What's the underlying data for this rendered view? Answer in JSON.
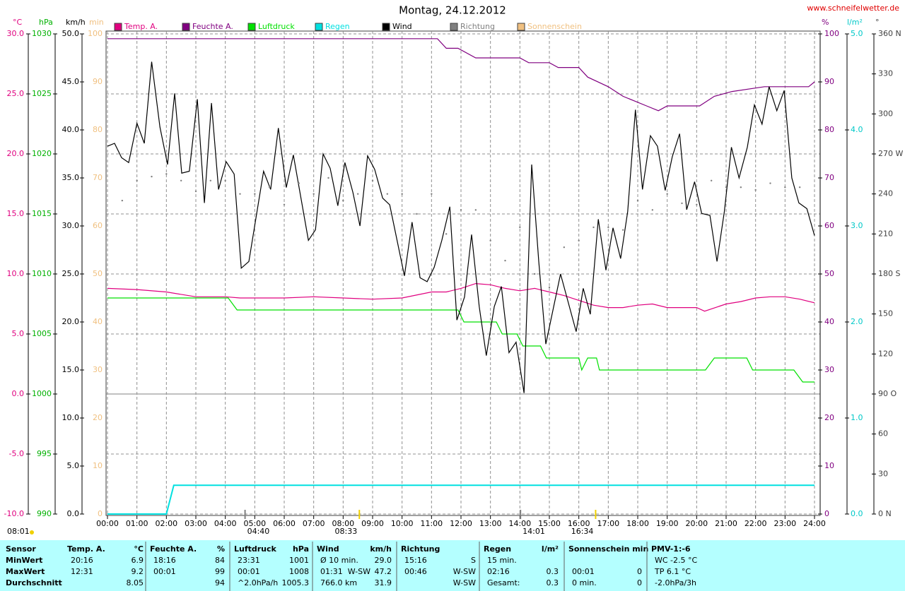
{
  "chart_data": {
    "type": "line",
    "title": "Montag, 24.12.2012",
    "source": "www.schneifelwetter.de",
    "corner_note": "08:01",
    "xlim": [
      0,
      24
    ],
    "xticks": [
      {
        "value": 0,
        "label": "00:00"
      },
      {
        "value": 1,
        "label": "01:00"
      },
      {
        "value": 2,
        "label": "02:00"
      },
      {
        "value": 3,
        "label": "03:00"
      },
      {
        "value": 4,
        "label": "04:00"
      },
      {
        "value": 5,
        "label": "05:00"
      },
      {
        "value": 6,
        "label": "06:00"
      },
      {
        "value": 7,
        "label": "07:00"
      },
      {
        "value": 8,
        "label": "08:00"
      },
      {
        "value": 9,
        "label": "09:00"
      },
      {
        "value": 10,
        "label": "10:00"
      },
      {
        "value": 11,
        "label": "11:00"
      },
      {
        "value": 12,
        "label": "12:00"
      },
      {
        "value": 13,
        "label": "13:00"
      },
      {
        "value": 14,
        "label": "14:00"
      },
      {
        "value": 15,
        "label": "15:00"
      },
      {
        "value": 16,
        "label": "16:00"
      },
      {
        "value": 17,
        "label": "17:00"
      },
      {
        "value": 18,
        "label": "18:00"
      },
      {
        "value": 19,
        "label": "19:00"
      },
      {
        "value": 20,
        "label": "20:00"
      },
      {
        "value": 21,
        "label": "21:00"
      },
      {
        "value": 22,
        "label": "22:00"
      },
      {
        "value": 23,
        "label": "23:00"
      },
      {
        "value": 24,
        "label": "24:00"
      }
    ],
    "grid": true,
    "axes": [
      {
        "unit": "°C",
        "color": "#e0007f",
        "lim": [
          -10,
          30
        ],
        "ticks": [
          {
            "value": -10,
            "label": "-10.0"
          },
          {
            "value": -5,
            "label": "-5.0"
          },
          {
            "value": 0,
            "label": "0.0"
          },
          {
            "value": 5,
            "label": "5.0"
          },
          {
            "value": 10,
            "label": "10.0"
          },
          {
            "value": 15,
            "label": "15.0"
          },
          {
            "value": 20,
            "label": "20.0"
          },
          {
            "value": 25,
            "label": "25.0"
          },
          {
            "value": 30,
            "label": "30.0"
          }
        ]
      },
      {
        "unit": "hPa",
        "color": "#00b000",
        "lim": [
          990,
          1030
        ],
        "ticks": [
          990,
          995,
          1000,
          1005,
          1010,
          1015,
          1020,
          1025,
          1030
        ]
      },
      {
        "unit": "km/h",
        "color": "#000000",
        "lim": [
          0,
          50
        ],
        "ticks": [
          {
            "value": 0,
            "label": "0.0"
          },
          {
            "value": 5,
            "label": "5.0"
          },
          {
            "value": 10,
            "label": "10.0"
          },
          {
            "value": 15,
            "label": "15.0"
          },
          {
            "value": 20,
            "label": "20.0"
          },
          {
            "value": 25,
            "label": "25.0"
          },
          {
            "value": 30,
            "label": "30.0"
          },
          {
            "value": 35,
            "label": "35.0"
          },
          {
            "value": 40,
            "label": "40.0"
          },
          {
            "value": 45,
            "label": "45.0"
          },
          {
            "value": 50,
            "label": "50.0"
          }
        ]
      },
      {
        "unit": "min",
        "color": "#f0c080",
        "lim": [
          0,
          100
        ],
        "ticks": [
          0,
          10,
          20,
          30,
          40,
          50,
          60,
          70,
          80,
          90,
          100
        ]
      },
      {
        "unit": "%",
        "color": "#800080",
        "lim": [
          0,
          100
        ],
        "ticks": [
          0,
          10,
          20,
          30,
          40,
          50,
          60,
          70,
          80,
          90,
          100
        ]
      },
      {
        "unit": "l/m²",
        "color": "#00c8c8",
        "lim": [
          0,
          5
        ],
        "ticks": [
          {
            "value": 0,
            "label": "0.0"
          },
          {
            "value": 1,
            "label": "1.0"
          },
          {
            "value": 2,
            "label": "2.0"
          },
          {
            "value": 3,
            "label": "3.0"
          },
          {
            "value": 4,
            "label": "4.0"
          },
          {
            "value": 5,
            "label": "5.0"
          }
        ]
      },
      {
        "unit": "°",
        "color": "#404040",
        "lim": [
          0,
          360
        ],
        "ticks": [
          {
            "value": 0,
            "label": "0 N"
          },
          30,
          60,
          {
            "value": 90,
            "label": "90 O"
          },
          120,
          150,
          {
            "value": 180,
            "label": "180 S"
          },
          210,
          240,
          {
            "value": 270,
            "label": "270 W"
          },
          300,
          330,
          {
            "value": 360,
            "label": "360 N"
          }
        ]
      }
    ],
    "series": [
      {
        "name": "Temp. A.",
        "color": "#e0007f",
        "axis": "°C",
        "x": [
          0,
          1,
          2,
          3,
          4,
          4.5,
          5,
          6,
          7,
          8,
          9,
          10,
          11,
          11.5,
          12,
          12.5,
          13,
          13.5,
          14,
          14.5,
          15,
          15.5,
          16,
          16.5,
          17,
          17.5,
          18,
          18.5,
          19,
          19.5,
          20,
          20.27,
          21,
          21.5,
          22,
          22.5,
          23,
          23.5,
          24
        ],
        "values": [
          8.8,
          8.7,
          8.5,
          8.1,
          8.1,
          8.0,
          8.0,
          8.0,
          8.1,
          8.0,
          7.9,
          8.0,
          8.5,
          8.5,
          8.8,
          9.2,
          9.1,
          8.8,
          8.6,
          8.8,
          8.5,
          8.2,
          7.8,
          7.4,
          7.2,
          7.2,
          7.4,
          7.5,
          7.2,
          7.2,
          7.2,
          6.9,
          7.5,
          7.7,
          8.0,
          8.1,
          8.1,
          7.9,
          7.6
        ]
      },
      {
        "name": "Feuchte A.",
        "color": "#800080",
        "axis": "%",
        "x": [
          0,
          11.2,
          11.5,
          11.9,
          12.5,
          14.0,
          14.3,
          15.0,
          15.3,
          16.0,
          16.3,
          17.0,
          17.5,
          18.3,
          18.7,
          19.0,
          20.1,
          20.6,
          21.2,
          22.3,
          23.8,
          24
        ],
        "values": [
          99,
          99,
          97,
          97,
          95,
          95,
          94,
          94,
          93,
          93,
          91,
          89,
          87,
          85,
          84,
          85,
          85,
          87,
          88,
          89,
          89,
          90
        ]
      },
      {
        "name": "Luftdruck",
        "color": "#00e000",
        "axis": "hPa",
        "x": [
          0,
          4.1,
          4.4,
          11.9,
          12.1,
          13.2,
          13.4,
          13.9,
          14.1,
          14.7,
          14.9,
          16.0,
          16.1,
          16.3,
          16.6,
          16.7,
          20.3,
          20.6,
          21.7,
          21.9,
          23.3,
          23.6,
          24
        ],
        "values": [
          1008,
          1008,
          1007,
          1007,
          1006,
          1006,
          1005,
          1005,
          1004,
          1004,
          1003,
          1003,
          1002,
          1003,
          1003,
          1002,
          1002,
          1003,
          1003,
          1002,
          1002,
          1001,
          1001
        ]
      },
      {
        "name": "Regen",
        "color": "#00e0e0",
        "axis": "l/m²",
        "x": [
          0,
          2.0,
          2.25,
          24
        ],
        "values": [
          0,
          0,
          0.3,
          0.3
        ]
      },
      {
        "name": "Wind",
        "color": "#000000",
        "axis": "km/h",
        "x": [
          0,
          0.24,
          0.48,
          0.72,
          1.0,
          1.25,
          1.5,
          1.78,
          2.04,
          2.28,
          2.52,
          2.78,
          3.05,
          3.29,
          3.53,
          3.77,
          4.03,
          4.3,
          4.54,
          4.8,
          5.3,
          5.54,
          5.8,
          6.07,
          6.31,
          6.82,
          7.06,
          7.32,
          7.56,
          7.82,
          8.06,
          8.33,
          8.57,
          8.83,
          9.07,
          9.34,
          9.58,
          10.08,
          10.34,
          10.61,
          10.85,
          11.09,
          11.35,
          11.62,
          11.86,
          12.12,
          12.36,
          12.62,
          12.86,
          13.13,
          13.37,
          13.63,
          13.87,
          14.14,
          14.4,
          14.64,
          14.88,
          15.38,
          15.91,
          16.15,
          16.39,
          16.66,
          16.92,
          17.16,
          17.42,
          17.66,
          17.92,
          18.16,
          18.43,
          18.67,
          18.93,
          19.17,
          19.42,
          19.66,
          19.93,
          20.17,
          20.45,
          20.69,
          20.94,
          21.18,
          21.44,
          21.72,
          21.96,
          22.22,
          22.46,
          22.72,
          22.97,
          23.23,
          23.47,
          23.74,
          24.0
        ],
        "values": [
          38.3,
          38.6,
          37.1,
          36.6,
          40.7,
          38.6,
          47.1,
          40.3,
          36.4,
          43.8,
          35.5,
          35.7,
          43.2,
          32.4,
          42.8,
          33.8,
          36.7,
          35.4,
          25.6,
          26.3,
          35.7,
          33.8,
          40.2,
          34.0,
          37.4,
          28.5,
          29.6,
          37.5,
          36.0,
          32.1,
          36.6,
          33.5,
          30.0,
          37.3,
          35.9,
          32.9,
          32.2,
          24.8,
          30.4,
          24.6,
          24.2,
          25.7,
          28.5,
          32.0,
          20.2,
          22.6,
          29.1,
          21.6,
          16.5,
          21.6,
          23.7,
          16.8,
          17.9,
          12.6,
          36.4,
          26.3,
          17.7,
          25.0,
          19.0,
          23.5,
          20.8,
          30.7,
          25.4,
          29.8,
          26.6,
          31.5,
          42.1,
          33.8,
          39.4,
          38.3,
          33.7,
          37.2,
          39.6,
          31.7,
          34.6,
          31.3,
          31.1,
          26.3,
          31.5,
          38.2,
          35.0,
          38.2,
          42.6,
          40.6,
          44.5,
          42.0,
          44.1,
          35.0,
          32.4,
          31.8,
          29.0
        ]
      },
      {
        "name": "Richtung",
        "color": "#808080",
        "axis": "°",
        "marker": "dot",
        "x": [
          0.5,
          1,
          1.5,
          2,
          2.5,
          3,
          3.5,
          4,
          4.5,
          5,
          5.5,
          6,
          6.5,
          7,
          7.5,
          8,
          8.5,
          9,
          9.5,
          10,
          10.5,
          11,
          11.5,
          12,
          12.5,
          13,
          13.5,
          14,
          14.5,
          15,
          15.5,
          16,
          16.5,
          17,
          17.5,
          18,
          18.5,
          19,
          19.5,
          20,
          20.5,
          21,
          21.5,
          22,
          22.5,
          23,
          23.5
        ],
        "values": [
          235,
          250,
          253,
          255,
          250,
          242,
          250,
          250,
          240,
          240,
          245,
          232,
          248,
          240,
          252,
          235,
          240,
          250,
          240,
          240,
          225,
          240,
          210,
          228,
          228,
          205,
          190,
          215,
          180,
          170,
          200,
          205,
          215,
          215,
          213,
          235,
          228,
          240,
          233,
          232,
          250,
          245,
          245,
          243,
          248,
          245,
          245
        ]
      },
      {
        "name": "Sonnenschein",
        "color": "#f0c080",
        "axis": "min",
        "x": [],
        "values": []
      }
    ],
    "annotations": [
      {
        "x": 4.67,
        "label": "04:40",
        "color": "#808080"
      },
      {
        "x": 8.55,
        "label": "08:33",
        "color": "#f0d000"
      },
      {
        "x": 14.02,
        "label": "14:01",
        "color": "#808080"
      },
      {
        "x": 16.57,
        "label": "16:34",
        "color": "#f0d000"
      }
    ]
  },
  "table": {
    "row_labels": [
      "Sensor",
      "MinWert",
      "MaxWert",
      "Durchschnitt"
    ],
    "groups": [
      {
        "title": "Temp. A.",
        "unit": "°C",
        "rows": [
          {
            "l": "20:16",
            "r": "6.9"
          },
          {
            "l": "12:31",
            "r": "9.2"
          },
          {
            "r": "8.05"
          }
        ]
      },
      {
        "title": "Feuchte A.",
        "unit": "%",
        "rows": [
          {
            "l": "18:16",
            "r": "84"
          },
          {
            "l": "00:01",
            "r": "99"
          },
          {
            "r": "94"
          }
        ]
      },
      {
        "title": "Luftdruck",
        "unit": "hPa",
        "rows": [
          {
            "l": "23:31",
            "r": "1001"
          },
          {
            "l": "00:01",
            "r": "1008"
          },
          {
            "l": "^2.0hPa/h",
            "r": "1005.3"
          }
        ]
      },
      {
        "title": "Wind",
        "unit": "km/h",
        "rows": [
          {
            "l": "Ø 10 min.",
            "r": "29.0"
          },
          {
            "l": "01:31",
            "m": "W-SW",
            "r": "47.2"
          },
          {
            "l": "766.0 km",
            "r": "31.9"
          }
        ]
      },
      {
        "title": "Richtung",
        "rows": [
          {
            "l": "15:16",
            "r": "S"
          },
          {
            "l": "00:46",
            "r": "W-SW"
          },
          {
            "r": "W-SW"
          }
        ]
      },
      {
        "title": "Regen",
        "unit": "l/m²",
        "rows": [
          {
            "l": "15 min."
          },
          {
            "l": "02:16",
            "r": "0.3"
          },
          {
            "l": "Gesamt:",
            "r": "0.3"
          }
        ]
      },
      {
        "title": "Sonnenschein min",
        "rows": [
          {},
          {
            "l": "00:01",
            "r": "0"
          },
          {
            "l": "0 min.",
            "r": "0"
          }
        ]
      },
      {
        "title": "PMV-1:-6",
        "rows": [
          {
            "l": "WC -2.5 °C"
          },
          {
            "l": "TP 6.1 °C"
          },
          {
            "l": "-2.0hPa/3h"
          }
        ]
      }
    ]
  }
}
